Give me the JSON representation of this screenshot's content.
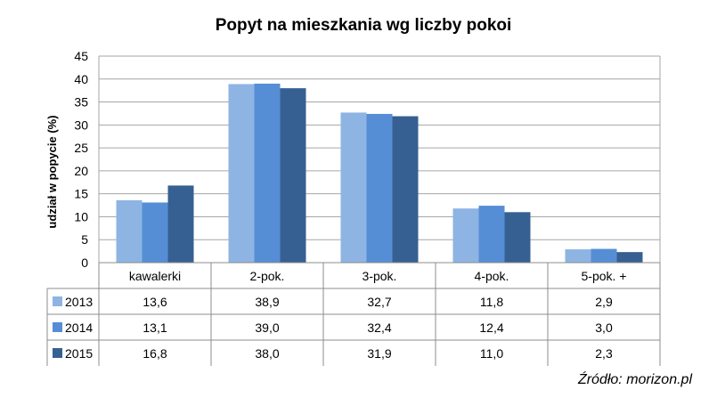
{
  "chart_data": {
    "type": "bar",
    "title": "Popyt na mieszkania wg liczby pokoi",
    "ylabel": "udział w popycie (%)",
    "xlabel": "",
    "ylim": [
      0,
      45
    ],
    "yticks": [
      0,
      5,
      10,
      15,
      20,
      25,
      30,
      35,
      40,
      45
    ],
    "grid": true,
    "legend": "data-table-left",
    "categories": [
      "kawalerki",
      "2-pok.",
      "3-pok.",
      "4-pok.",
      "5-pok. +"
    ],
    "series": [
      {
        "name": "2013",
        "color": "#8eb4e3",
        "values": [
          13.6,
          38.9,
          32.7,
          11.8,
          2.9
        ],
        "labels": [
          "13,6",
          "38,9",
          "32,7",
          "11,8",
          "2,9"
        ]
      },
      {
        "name": "2014",
        "color": "#558ed5",
        "values": [
          13.1,
          39.0,
          32.4,
          12.4,
          3.0
        ],
        "labels": [
          "13,1",
          "39,0",
          "32,4",
          "12,4",
          "3,0"
        ]
      },
      {
        "name": "2015",
        "color": "#376092",
        "values": [
          16.8,
          38.0,
          31.9,
          11.0,
          2.3
        ],
        "labels": [
          "16,8",
          "38,0",
          "31,9",
          "11,0",
          "2,3"
        ]
      }
    ]
  },
  "source": "Źródło: morizon.pl"
}
